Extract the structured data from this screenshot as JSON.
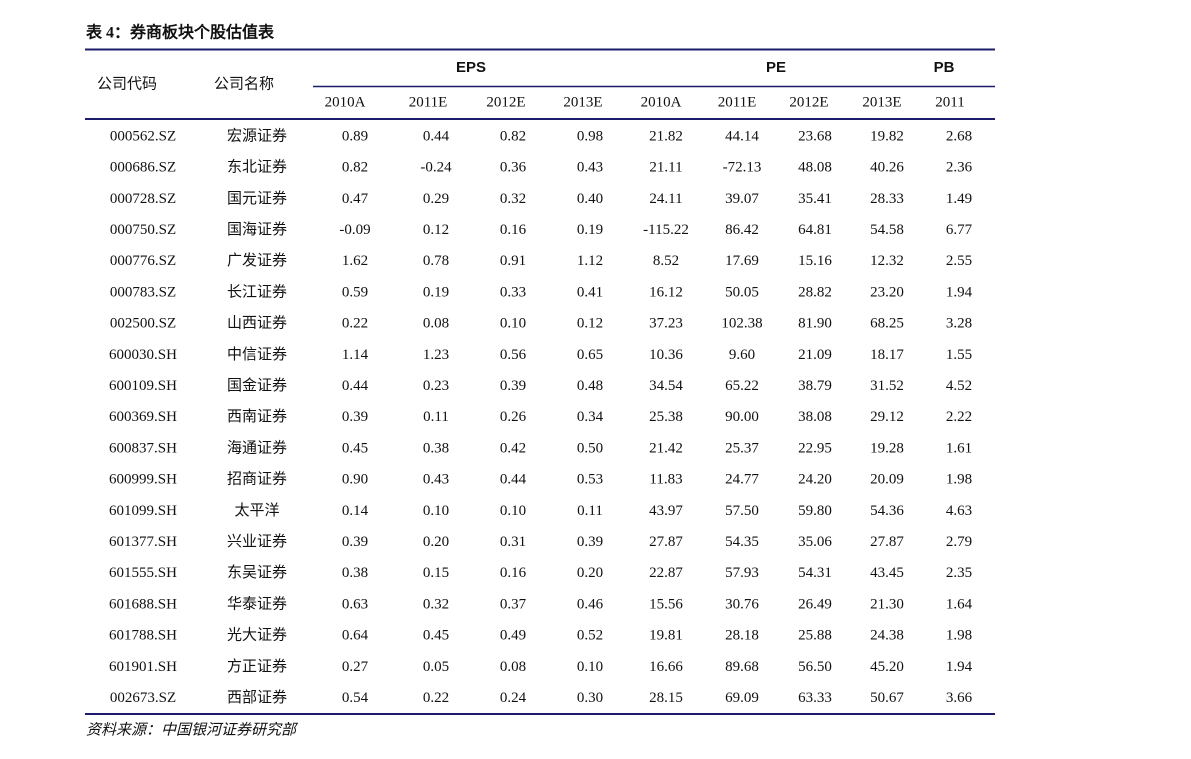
{
  "title": "表 4：券商板块个股估值表",
  "header": {
    "code": "公司代码",
    "name": "公司名称",
    "groups": [
      "EPS",
      "PE",
      "PB"
    ],
    "years": [
      "2010A",
      "2011E",
      "2012E",
      "2013E",
      "2010A",
      "2011E",
      "2012E",
      "2013E",
      "2011"
    ]
  },
  "rows": [
    [
      "000562.SZ",
      "宏源证券",
      "0.89",
      "0.44",
      "0.82",
      "0.98",
      "21.82",
      "44.14",
      "23.68",
      "19.82",
      "2.68"
    ],
    [
      "000686.SZ",
      "东北证券",
      "0.82",
      "-0.24",
      "0.36",
      "0.43",
      "21.11",
      "-72.13",
      "48.08",
      "40.26",
      "2.36"
    ],
    [
      "000728.SZ",
      "国元证券",
      "0.47",
      "0.29",
      "0.32",
      "0.40",
      "24.11",
      "39.07",
      "35.41",
      "28.33",
      "1.49"
    ],
    [
      "000750.SZ",
      "国海证券",
      "-0.09",
      "0.12",
      "0.16",
      "0.19",
      "-115.22",
      "86.42",
      "64.81",
      "54.58",
      "6.77"
    ],
    [
      "000776.SZ",
      "广发证券",
      "1.62",
      "0.78",
      "0.91",
      "1.12",
      "8.52",
      "17.69",
      "15.16",
      "12.32",
      "2.55"
    ],
    [
      "000783.SZ",
      "长江证券",
      "0.59",
      "0.19",
      "0.33",
      "0.41",
      "16.12",
      "50.05",
      "28.82",
      "23.20",
      "1.94"
    ],
    [
      "002500.SZ",
      "山西证券",
      "0.22",
      "0.08",
      "0.10",
      "0.12",
      "37.23",
      "102.38",
      "81.90",
      "68.25",
      "3.28"
    ],
    [
      "600030.SH",
      "中信证券",
      "1.14",
      "1.23",
      "0.56",
      "0.65",
      "10.36",
      "9.60",
      "21.09",
      "18.17",
      "1.55"
    ],
    [
      "600109.SH",
      "国金证券",
      "0.44",
      "0.23",
      "0.39",
      "0.48",
      "34.54",
      "65.22",
      "38.79",
      "31.52",
      "4.52"
    ],
    [
      "600369.SH",
      "西南证券",
      "0.39",
      "0.11",
      "0.26",
      "0.34",
      "25.38",
      "90.00",
      "38.08",
      "29.12",
      "2.22"
    ],
    [
      "600837.SH",
      "海通证券",
      "0.45",
      "0.38",
      "0.42",
      "0.50",
      "21.42",
      "25.37",
      "22.95",
      "19.28",
      "1.61"
    ],
    [
      "600999.SH",
      "招商证券",
      "0.90",
      "0.43",
      "0.44",
      "0.53",
      "11.83",
      "24.77",
      "24.20",
      "20.09",
      "1.98"
    ],
    [
      "601099.SH",
      "太平洋",
      "0.14",
      "0.10",
      "0.10",
      "0.11",
      "43.97",
      "57.50",
      "59.80",
      "54.36",
      "4.63"
    ],
    [
      "601377.SH",
      "兴业证券",
      "0.39",
      "0.20",
      "0.31",
      "0.39",
      "27.87",
      "54.35",
      "35.06",
      "27.87",
      "2.79"
    ],
    [
      "601555.SH",
      "东吴证券",
      "0.38",
      "0.15",
      "0.16",
      "0.20",
      "22.87",
      "57.93",
      "54.31",
      "43.45",
      "2.35"
    ],
    [
      "601688.SH",
      "华泰证券",
      "0.63",
      "0.32",
      "0.37",
      "0.46",
      "15.56",
      "30.76",
      "26.49",
      "21.30",
      "1.64"
    ],
    [
      "601788.SH",
      "光大证券",
      "0.64",
      "0.45",
      "0.49",
      "0.52",
      "19.81",
      "28.18",
      "25.88",
      "24.38",
      "1.98"
    ],
    [
      "601901.SH",
      "方正证券",
      "0.27",
      "0.05",
      "0.08",
      "0.10",
      "16.66",
      "89.68",
      "56.50",
      "45.20",
      "1.94"
    ],
    [
      "002673.SZ",
      "西部证券",
      "0.54",
      "0.22",
      "0.24",
      "0.30",
      "28.15",
      "69.09",
      "63.33",
      "50.67",
      "3.66"
    ]
  ],
  "source": "资料来源：中国银河证券研究部"
}
